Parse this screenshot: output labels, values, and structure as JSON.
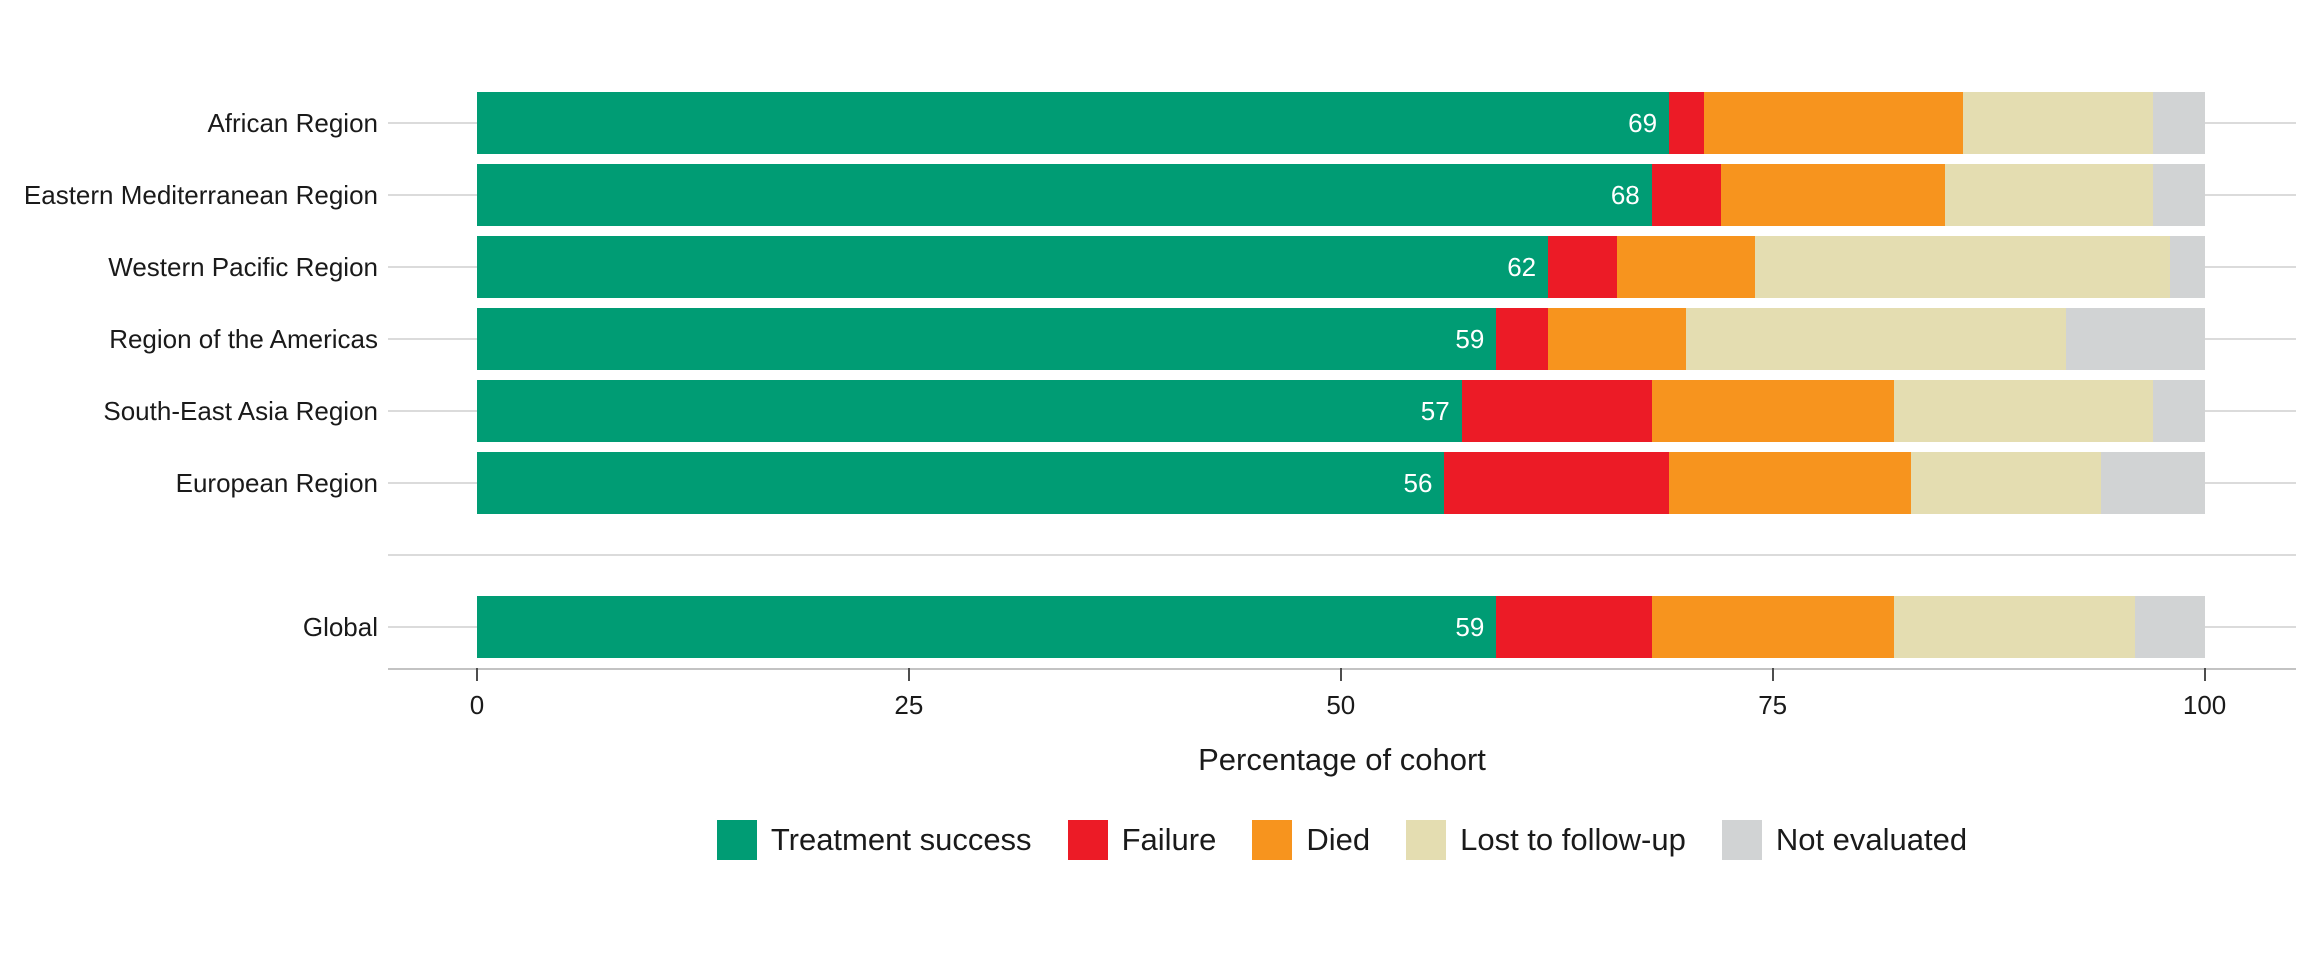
{
  "chart_data": {
    "type": "bar",
    "orientation": "horizontal",
    "stacked": true,
    "title": "",
    "xlabel": "Percentage of cohort",
    "ylabel": "",
    "xlim": [
      0,
      100
    ],
    "x_ticks": [
      "0",
      "25",
      "50",
      "75",
      "100"
    ],
    "grid": "horizontal-category-lines",
    "legend_position": "bottom",
    "gap_before_category": "Global",
    "categories": [
      "African Region",
      "Eastern Mediterranean Region",
      "Western Pacific Region",
      "Region of the Americas",
      "South-East Asia Region",
      "European Region",
      "Global"
    ],
    "series": [
      {
        "name": "Treatment success",
        "color": "#009C74",
        "values": [
          69,
          68,
          62,
          59,
          57,
          56,
          59
        ]
      },
      {
        "name": "Failure",
        "color": "#EC1B26",
        "values": [
          2,
          4,
          4,
          3,
          11,
          13,
          9
        ]
      },
      {
        "name": "Died",
        "color": "#F7941E",
        "values": [
          15,
          13,
          8,
          8,
          14,
          14,
          14
        ]
      },
      {
        "name": "Lost to follow-up",
        "color": "#E4DDB1",
        "values": [
          11,
          12,
          24,
          22,
          15,
          11,
          14
        ]
      },
      {
        "name": "Not evaluated",
        "color": "#D1D3D4",
        "values": [
          3,
          3,
          2,
          8,
          3,
          6,
          4
        ]
      }
    ],
    "segment_labels": {
      "series": "Treatment success",
      "values": [
        "69",
        "68",
        "62",
        "59",
        "57",
        "56",
        "59"
      ]
    }
  },
  "colors": {
    "background": "#FFFFFF",
    "grid": "#DBDBDB",
    "axis_line": "#C3C3C3",
    "tick": "#4D4D4D",
    "text": "#1A1A1A",
    "value_label": "#FFFFFF"
  }
}
